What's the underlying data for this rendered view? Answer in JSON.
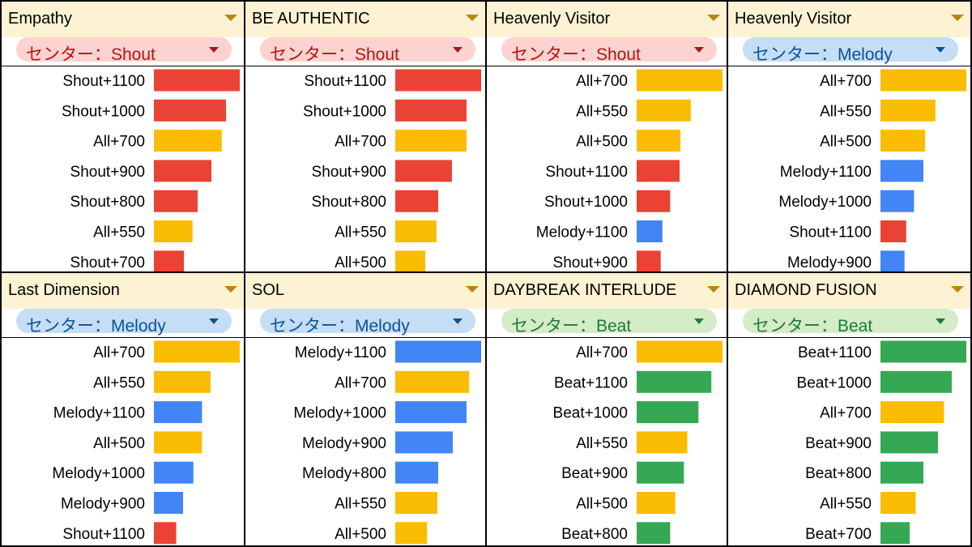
{
  "colors": {
    "All": "#fbbc04",
    "Shout": "#ea4335",
    "Melody": "#4285f4",
    "Beat": "#34a853",
    "header_bg": "#fdf2d3",
    "header_arrow": "#b8860b"
  },
  "center_styles": {
    "Shout": {
      "bg": "#fcd3d0",
      "fg": "#b31412"
    },
    "Melody": {
      "bg": "#c5def5",
      "fg": "#0b5394"
    },
    "Beat": {
      "bg": "#d4ecc8",
      "fg": "#1e7b34"
    }
  },
  "chart_data": [
    {
      "type": "bar",
      "title": "Empathy",
      "center": "センター：Shout",
      "center_attr": "Shout",
      "categories": [
        "Shout+1100",
        "Shout+1000",
        "All+700",
        "Shout+900",
        "Shout+800",
        "All+550",
        "Shout+700"
      ],
      "values": [
        100,
        84,
        79,
        67,
        51,
        45,
        35
      ],
      "series_attr": [
        "Shout",
        "Shout",
        "All",
        "Shout",
        "Shout",
        "All",
        "Shout"
      ]
    },
    {
      "type": "bar",
      "title": "BE AUTHENTIC",
      "center": "センター：Shout",
      "center_attr": "Shout",
      "categories": [
        "Shout+1100",
        "Shout+1000",
        "All+700",
        "Shout+900",
        "Shout+800",
        "All+550",
        "All+500"
      ],
      "values": [
        100,
        83,
        83,
        66,
        50,
        48,
        35
      ],
      "series_attr": [
        "Shout",
        "Shout",
        "All",
        "Shout",
        "Shout",
        "All",
        "All"
      ]
    },
    {
      "type": "bar",
      "title": "Heavenly Visitor",
      "center": "センター：Shout",
      "center_attr": "Shout",
      "categories": [
        "All+700",
        "All+550",
        "All+500",
        "Shout+1100",
        "Shout+1000",
        "Melody+1100",
        "Shout+900"
      ],
      "values": [
        100,
        63,
        51,
        50,
        39,
        30,
        28
      ],
      "series_attr": [
        "All",
        "All",
        "All",
        "Shout",
        "Shout",
        "Melody",
        "Shout"
      ]
    },
    {
      "type": "bar",
      "title": "Heavenly Visitor",
      "center": "センター：Melody",
      "center_attr": "Melody",
      "categories": [
        "All+700",
        "All+550",
        "All+500",
        "Melody+1100",
        "Melody+1000",
        "Shout+1100",
        "Melody+900"
      ],
      "values": [
        100,
        64,
        52,
        50,
        39,
        30,
        28
      ],
      "series_attr": [
        "All",
        "All",
        "All",
        "Melody",
        "Melody",
        "Shout",
        "Melody"
      ]
    },
    {
      "type": "bar",
      "title": "Last Dimension",
      "center": "センター：Melody",
      "center_attr": "Melody",
      "categories": [
        "All+700",
        "All+550",
        "Melody+1100",
        "All+500",
        "Melody+1000",
        "Melody+900",
        "Shout+1100"
      ],
      "values": [
        100,
        66,
        56,
        56,
        46,
        34,
        26
      ],
      "series_attr": [
        "All",
        "All",
        "Melody",
        "All",
        "Melody",
        "Melody",
        "Shout"
      ]
    },
    {
      "type": "bar",
      "title": "SOL",
      "center": "センター：Melody",
      "center_attr": "Melody",
      "categories": [
        "Melody+1100",
        "All+700",
        "Melody+1000",
        "Melody+900",
        "Melody+800",
        "All+550",
        "All+500"
      ],
      "values": [
        100,
        86,
        83,
        67,
        50,
        49,
        37
      ],
      "series_attr": [
        "Melody",
        "All",
        "Melody",
        "Melody",
        "Melody",
        "All",
        "All"
      ]
    },
    {
      "type": "bar",
      "title": "DAYBREAK INTERLUDE",
      "center": "センター：Beat",
      "center_attr": "Beat",
      "categories": [
        "All+700",
        "Beat+1100",
        "Beat+1000",
        "All+550",
        "Beat+900",
        "All+500",
        "Beat+800"
      ],
      "values": [
        100,
        87,
        72,
        59,
        55,
        45,
        39
      ],
      "series_attr": [
        "All",
        "Beat",
        "Beat",
        "All",
        "Beat",
        "All",
        "Beat"
      ]
    },
    {
      "type": "bar",
      "title": "DIAMOND FUSION",
      "center": "センター：Beat",
      "center_attr": "Beat",
      "categories": [
        "Beat+1100",
        "Beat+1000",
        "All+700",
        "Beat+900",
        "Beat+800",
        "All+550",
        "Beat+700"
      ],
      "values": [
        100,
        83,
        74,
        67,
        50,
        41,
        34
      ],
      "series_attr": [
        "Beat",
        "Beat",
        "All",
        "Beat",
        "Beat",
        "All",
        "Beat"
      ]
    }
  ]
}
